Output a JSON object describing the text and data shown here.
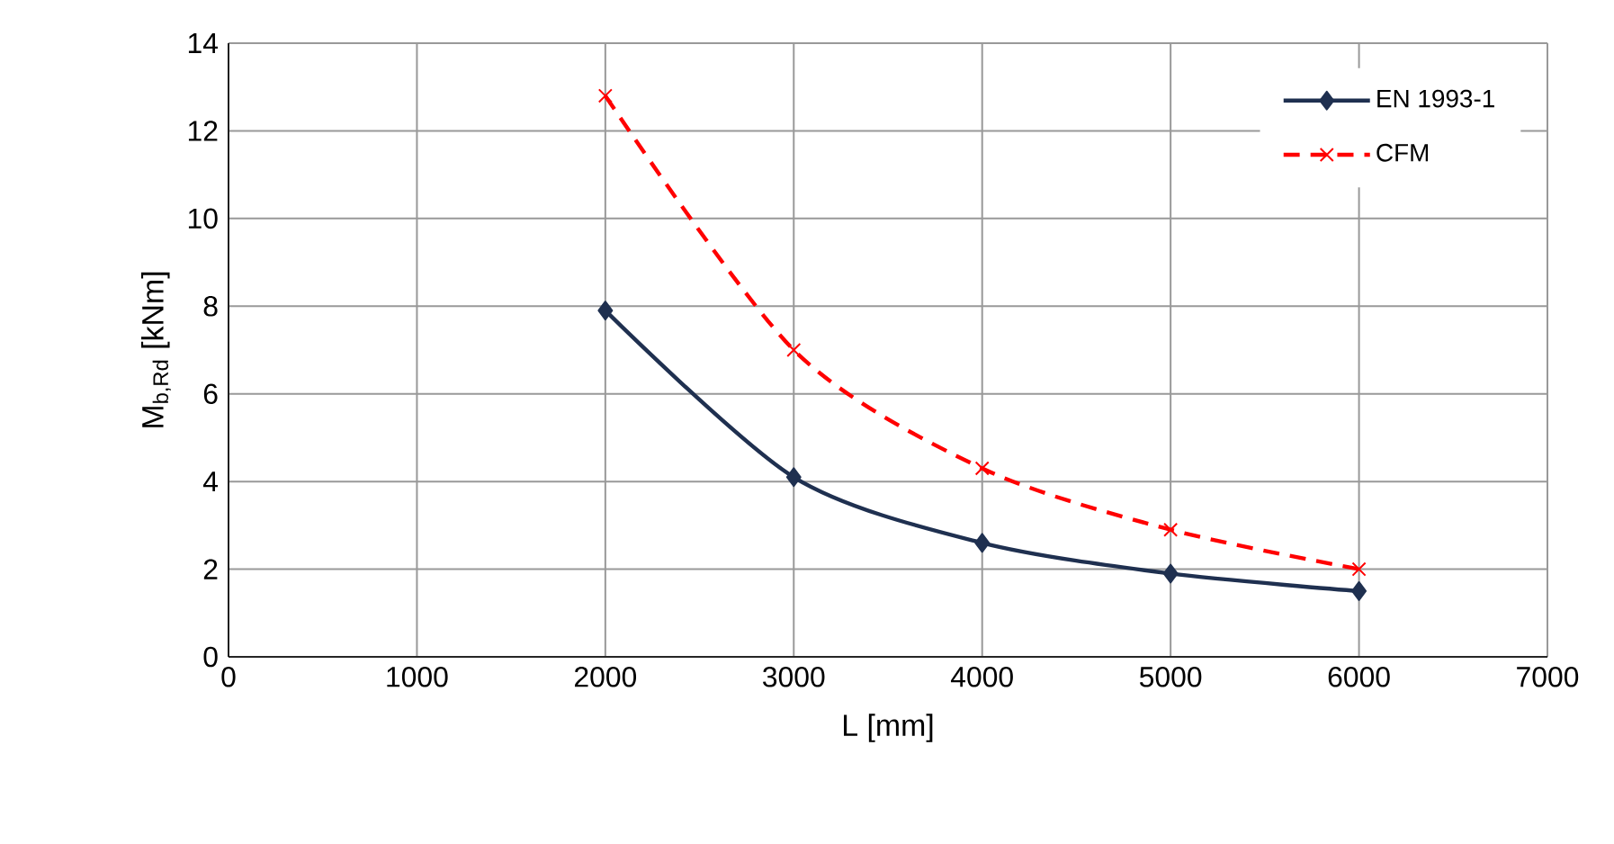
{
  "chart_data": {
    "type": "line",
    "xlabel": "L [mm]",
    "ylabel": "M$_{b,Rd}$ [kNm]",
    "x": [
      2000,
      3000,
      4000,
      5000,
      6000
    ],
    "series": [
      {
        "name": "EN 1993-1",
        "color": "#1f3050",
        "values": [
          7.9,
          4.1,
          2.6,
          1.9,
          1.5
        ],
        "marker": "diamond",
        "line_style": "solid"
      },
      {
        "name": "CFM",
        "color": "#ff0000",
        "values": [
          12.8,
          7.0,
          4.3,
          2.9,
          2.0
        ],
        "marker": "cross",
        "line_style": "dashed"
      }
    ],
    "xlim": [
      0,
      7000
    ],
    "xticks": [
      0,
      1000,
      2000,
      3000,
      4000,
      5000,
      6000,
      7000
    ],
    "ylim": [
      0,
      14
    ],
    "yticks": [
      0,
      2,
      4,
      6,
      8,
      10,
      12,
      14
    ],
    "grid": true,
    "legend": "top right"
  }
}
